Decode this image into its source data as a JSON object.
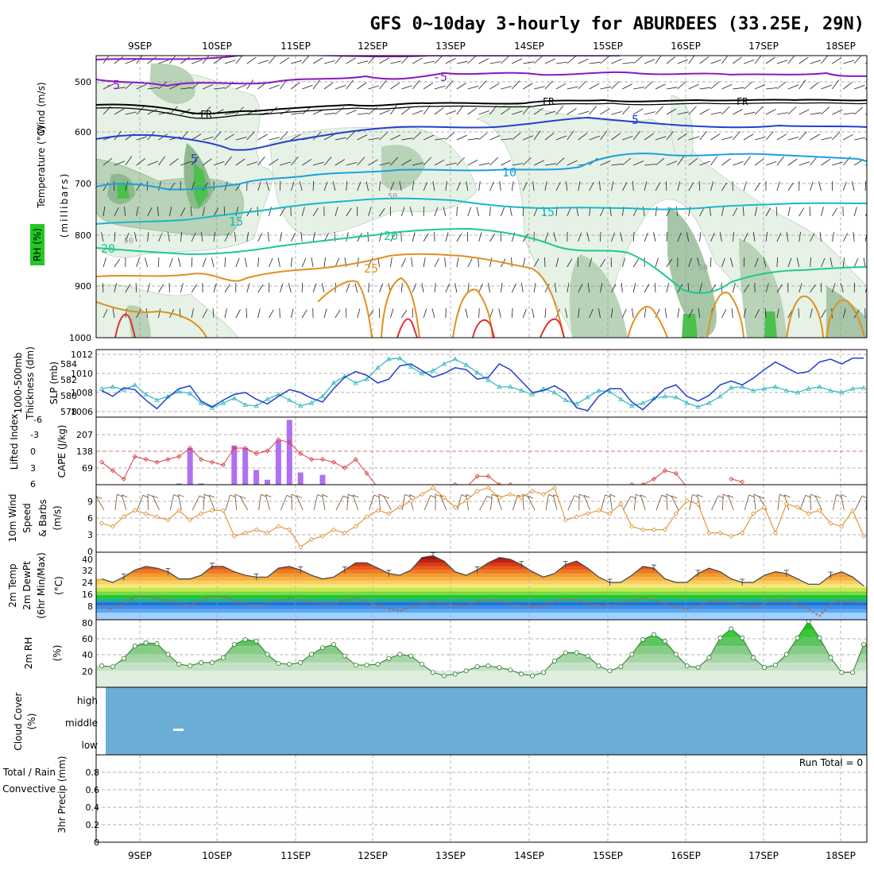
{
  "title": "GFS 0~10day 3-hourly for ABURDEES (33.25E, 29N)",
  "dates": [
    "9SEP",
    "10SEP",
    "11SEP",
    "12SEP",
    "13SEP",
    "14SEP",
    "15SEP",
    "16SEP",
    "17SEP",
    "18SEP"
  ],
  "colors": {
    "slp": "#1f3fd0",
    "thickness": "#2fb7c0",
    "lifted": "#d84040",
    "cape": "#b070f0",
    "wind": "#e09030",
    "barb": "#806040",
    "rh_green": "#22c922",
    "cloud": "#6aaed6",
    "temp_purple": "#8a18c0",
    "temp_black": "#000000",
    "temp_blue": "#2040d0",
    "temp_lblue": "#1aa0e0",
    "temp_teal": "#18b8c8",
    "temp_green": "#20c890",
    "temp_orange": "#e09020",
    "temp_red": "#e03030"
  },
  "panels": {
    "upper": {
      "ylabel_wind": "Wind (m/s)",
      "ylabel_temp": "Temperature (°C)",
      "ylabel_rh": "RH (%)",
      "ylabel_p": "(millibars)",
      "pressure_ticks": [
        "500",
        "600",
        "700",
        "800",
        "900",
        "1000"
      ],
      "contour_labels": [
        "-5",
        "-5",
        "FR",
        "FR",
        "FR",
        "5",
        "5",
        "10",
        "15",
        "15",
        "20",
        "20",
        "25",
        "50",
        "50",
        "50"
      ]
    },
    "slp": {
      "left_label_a": "1000-500mb",
      "left_label_b": "Thickness (dm)",
      "right_label": "SLP (mb)",
      "thk_ticks": [
        "584",
        "582",
        "580",
        "578"
      ],
      "slp_ticks": [
        "1012",
        "1010",
        "1008",
        "1006"
      ]
    },
    "cape": {
      "label_li": "Lifted Index",
      "label_cape": "CAPE (J/kg)",
      "li_ticks": [
        "-6",
        "-3",
        "0",
        "3",
        "6"
      ],
      "cape_ticks": [
        "207",
        "138",
        "69"
      ]
    },
    "wind10": {
      "label_a": "10m Wind",
      "label_b": "Speed",
      "label_c": "& Barbs",
      "label_unit": "(m/s)",
      "ticks": [
        "9",
        "6",
        "3",
        "0"
      ]
    },
    "temp2m": {
      "label_a": "2m Temp",
      "label_b": "2m DewPt",
      "label_c": "(6hr Min/Max)",
      "label_unit": "(°C)",
      "ticks": [
        "40",
        "32",
        "24",
        "16",
        "8"
      ]
    },
    "rh2m": {
      "label_a": "2m RH",
      "label_unit": "(%)",
      "ticks": [
        "80",
        "60",
        "40",
        "20"
      ]
    },
    "cloud": {
      "label_a": "Cloud Cover",
      "label_unit": "(%)",
      "levels": [
        "high",
        "middle",
        "low"
      ]
    },
    "precip": {
      "label_a": "3hr Precip (mm)",
      "label_total": "Total / Rain",
      "label_conv": "Convective",
      "run_total": "Run Total = 0",
      "ticks": [
        "0.8",
        "0.6",
        "0.4",
        "0.2",
        "0"
      ]
    }
  },
  "chart_data": [
    {
      "type": "line",
      "title": "1000-500mb Thickness (dm) / SLP (mb)",
      "series": [
        {
          "name": "SLP (mb)",
          "values": [
            1008.2,
            1007.6,
            1008.5,
            1008.3,
            1007.2,
            1006.3,
            1007.5,
            1008.4,
            1008.7,
            1007.1,
            1006.5,
            1007.2,
            1007.8,
            1008.0,
            1007.3,
            1006.8,
            1007.6,
            1008.3,
            1008.0,
            1007.4,
            1007.0,
            1008.4,
            1009.6,
            1010.2,
            1009.8,
            1009.0,
            1009.4,
            1010.8,
            1011.0,
            1010.3,
            1009.6,
            1010.0,
            1010.6,
            1010.4,
            1009.4,
            1009.6,
            1011.0,
            1010.4,
            1009.2,
            1008.0,
            1008.2,
            1008.7,
            1008.0,
            1006.4,
            1006.1,
            1007.6,
            1008.4,
            1008.4,
            1007.0,
            1006.2,
            1007.3,
            1008.4,
            1008.8,
            1007.6,
            1007.1,
            1007.7,
            1008.8,
            1009.2,
            1008.8,
            1009.5,
            1010.4,
            1011.2,
            1010.6,
            1010.0,
            1010.2,
            1011.2,
            1011.5,
            1011.0,
            1011.6,
            1011.6
          ]
        },
        {
          "name": "1000-500mb Thickness (dm)",
          "values": [
            580.4,
            580.6,
            580.3,
            580.8,
            579.8,
            579.2,
            579.6,
            580.1,
            579.9,
            578.9,
            578.4,
            578.9,
            579.4,
            578.7,
            578.6,
            579.3,
            579.8,
            579.2,
            578.6,
            578.9,
            579.6,
            581.0,
            581.7,
            581.0,
            581.4,
            582.6,
            583.5,
            583.6,
            582.7,
            582.0,
            582.3,
            583.0,
            583.5,
            582.9,
            582.1,
            581.3,
            580.6,
            580.6,
            580.2,
            579.8,
            580.4,
            580.0,
            579.2,
            578.8,
            579.5,
            580.2,
            580.1,
            579.3,
            578.6,
            578.9,
            579.4,
            579.6,
            579.5,
            578.9,
            578.5,
            578.9,
            579.6,
            580.5,
            580.6,
            580.2,
            580.4,
            580.6,
            580.2,
            580.0,
            580.4,
            580.6,
            580.2,
            580.0,
            580.4,
            580.5
          ]
        }
      ],
      "ylim_slp": [
        1005,
        1013
      ],
      "ylim_thk": [
        577,
        585
      ]
    },
    {
      "type": "bar",
      "title": "Lifted Index / CAPE (J/kg)",
      "series": [
        {
          "name": "CAPE (J/kg)",
          "values": [
            0,
            0,
            0,
            0,
            0,
            0,
            0,
            5,
            150,
            5,
            0,
            0,
            160,
            150,
            60,
            20,
            180,
            265,
            50,
            0,
            40
          ]
        },
        {
          "name": "Lifted Index",
          "values": [
            2.0,
            3.5,
            5.0,
            1.0,
            1.5,
            2.0,
            1.5,
            1.0,
            -0.5,
            1.5,
            2.0,
            2.5,
            -0.5,
            -0.5,
            0.5,
            0.0,
            -2.0,
            -1.5,
            0.5,
            1.5,
            1.5,
            2.0,
            3.0,
            1.5,
            4.0,
            6.5,
            null,
            null,
            null,
            null,
            null,
            6.5,
            6.0,
            6.5,
            4.5,
            4.5,
            6.0,
            6.0,
            7.0,
            null,
            null,
            null,
            null,
            null,
            null,
            null,
            null,
            7.0,
            6.0,
            6.0,
            5.0,
            3.5,
            4.0,
            6.5,
            null,
            null,
            null,
            5.0,
            5.5,
            null,
            null,
            null,
            null,
            6.5,
            null,
            null,
            null,
            null,
            null,
            null
          ]
        }
      ],
      "ylim_li": [
        6,
        -6
      ],
      "ylim_cape": [
        0,
        276
      ]
    },
    {
      "type": "line",
      "title": "10m Wind Speed (m/s)",
      "series": [
        {
          "name": "Speed",
          "values": [
            4.5,
            4.0,
            5.5,
            6.5,
            6.0,
            5.5,
            5.0,
            6.5,
            5.0,
            6.0,
            6.5,
            6.5,
            2.5,
            3.0,
            3.5,
            3.0,
            4.0,
            3.5,
            0.8,
            2.0,
            2.5,
            3.5,
            3.0,
            4.0,
            5.5,
            6.5,
            6.0,
            7.0,
            8.0,
            9.0,
            10.0,
            8.5,
            7.0,
            8.0,
            9.5,
            10.0,
            8.5,
            9.0,
            8.5,
            9.5,
            9.0,
            10.0,
            5.0,
            5.5,
            6.0,
            6.5,
            6.0,
            7.5,
            4.0,
            3.5,
            3.5,
            3.5,
            6.0,
            8.0,
            7.5,
            3.0,
            3.0,
            2.5,
            3.0,
            6.0,
            7.0,
            3.0,
            7.5,
            7.0,
            6.0,
            6.5,
            4.5,
            4.0,
            6.5,
            2.5
          ]
        }
      ],
      "ylim": [
        0,
        10.5
      ]
    },
    {
      "type": "area",
      "title": "2m Temp / 2m DewPt (°C)",
      "series": [
        {
          "name": "2m Temp",
          "values": [
            27,
            25,
            28,
            32,
            34,
            33,
            31,
            27,
            27,
            29,
            34,
            34,
            31,
            29,
            28,
            28,
            33,
            34,
            32,
            29,
            27,
            28,
            32,
            36,
            36,
            33,
            30,
            29,
            32,
            39,
            40,
            37,
            31,
            29,
            32,
            36,
            39,
            38,
            35,
            31,
            28,
            30,
            35,
            37,
            33,
            28,
            25,
            25,
            29,
            34,
            33,
            27,
            25,
            25,
            30,
            33,
            31,
            27,
            25,
            25,
            29,
            31,
            30,
            27,
            24,
            24,
            29,
            31,
            28,
            23
          ]
        },
        {
          "name": "2m DewPt",
          "values": [
            11,
            10,
            13,
            17,
            17,
            16,
            15,
            13,
            12,
            15,
            17,
            17,
            15,
            13,
            12,
            13,
            15,
            16,
            15,
            14,
            13,
            13,
            15,
            16,
            14,
            12,
            10,
            9,
            11,
            13,
            14,
            13,
            12,
            12,
            14,
            15,
            15,
            13,
            12,
            11,
            12,
            14,
            16,
            15,
            13,
            12,
            12,
            13,
            15,
            16,
            15,
            13,
            11,
            10,
            12,
            14,
            15,
            13,
            12,
            11,
            13,
            15,
            15,
            12,
            10,
            6,
            13,
            15,
            14,
            13
          ]
        }
      ],
      "ylim": [
        4,
        42
      ]
    },
    {
      "type": "area",
      "title": "2m RH (%)",
      "series": [
        {
          "name": "2m RH",
          "values": [
            26,
            25,
            35,
            50,
            54,
            53,
            40,
            28,
            26,
            30,
            30,
            36,
            52,
            58,
            56,
            40,
            29,
            28,
            30,
            40,
            48,
            52,
            38,
            27,
            27,
            28,
            35,
            40,
            38,
            28,
            18,
            14,
            16,
            20,
            25,
            26,
            24,
            21,
            16,
            14,
            18,
            32,
            42,
            42,
            38,
            26,
            20,
            25,
            40,
            58,
            64,
            56,
            40,
            26,
            24,
            36,
            60,
            71,
            60,
            36,
            24,
            27,
            40,
            60,
            80,
            60,
            36,
            18,
            18,
            52
          ]
        }
      ],
      "ylim": [
        0,
        82
      ]
    },
    {
      "type": "bar",
      "title": "3hr Precip (mm)",
      "series": [
        {
          "name": "Total / Rain",
          "values": [
            0,
            0,
            0,
            0,
            0,
            0,
            0,
            0,
            0,
            0,
            0,
            0,
            0,
            0,
            0,
            0,
            0,
            0,
            0,
            0,
            0,
            0,
            0,
            0,
            0,
            0,
            0,
            0,
            0,
            0,
            0,
            0,
            0,
            0,
            0,
            0,
            0,
            0,
            0,
            0,
            0,
            0,
            0,
            0,
            0,
            0,
            0,
            0,
            0,
            0,
            0,
            0,
            0,
            0,
            0,
            0,
            0,
            0,
            0,
            0,
            0,
            0,
            0,
            0,
            0,
            0,
            0,
            0,
            0,
            0
          ]
        },
        {
          "name": "Convective",
          "values": [
            0,
            0,
            0,
            0,
            0,
            0,
            0,
            0,
            0,
            0,
            0,
            0,
            0,
            0,
            0,
            0,
            0,
            0,
            0,
            0,
            0,
            0,
            0,
            0,
            0,
            0,
            0,
            0,
            0,
            0,
            0,
            0,
            0,
            0,
            0,
            0,
            0,
            0,
            0,
            0,
            0,
            0,
            0,
            0,
            0,
            0,
            0,
            0,
            0,
            0,
            0,
            0,
            0,
            0,
            0,
            0,
            0,
            0,
            0,
            0,
            0,
            0,
            0,
            0,
            0,
            0,
            0,
            0,
            0,
            0
          ]
        }
      ],
      "ylim": [
        0,
        1
      ]
    }
  ]
}
